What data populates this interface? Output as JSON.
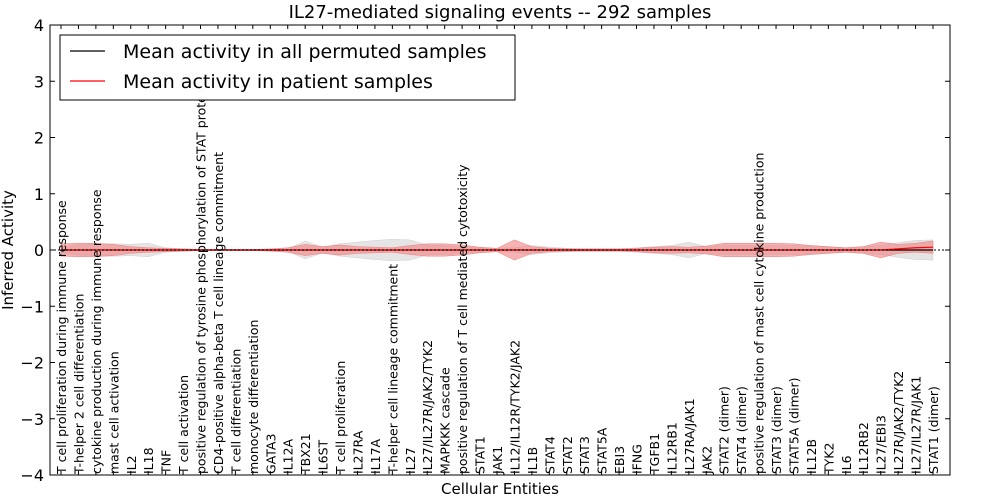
{
  "chart_data": {
    "type": "line",
    "title": "IL27-mediated signaling events -- 292 samples",
    "xlabel": "Cellular Entities",
    "ylabel": "Inferred Activity",
    "ylim": [
      -4,
      4
    ],
    "yticks": [
      "4",
      "3",
      "2",
      "1",
      "0",
      "−1",
      "−2",
      "−3",
      "−4"
    ],
    "ytick_values": [
      4,
      3,
      2,
      1,
      0,
      -1,
      -2,
      -3,
      -4
    ],
    "legend": {
      "placement": "top-left",
      "entries": [
        {
          "label": "Mean activity in all permuted samples",
          "color": "#000000"
        },
        {
          "label": "Mean activity in patient samples",
          "color": "#ff0000"
        }
      ]
    },
    "categories": [
      "T cell proliferation during immune response",
      "T-helper 2 cell differentiation",
      "cytokine production during immune response",
      "mast cell activation",
      "IL2",
      "IL18",
      "TNF",
      "T cell activation",
      "positive regulation of tyrosine phosphorylation of STAT protein",
      "CD4-positive alpha-beta T cell lineage commitment",
      "T cell differentiation",
      "monocyte differentiation",
      "GATA3",
      "IL12A",
      "TBX21",
      "IL6ST",
      "T cell proliferation",
      "IL27RA",
      "IL17A",
      "T-helper cell lineage commitment",
      "IL27",
      "IL27/IL27R/JAK2/TYK2",
      "MAPKKK cascade",
      "positive regulation of T cell mediated cytotoxicity",
      "STAT1",
      "JAK1",
      "IL12/IL12R/TYK2/JAK2",
      "IL1B",
      "STAT4",
      "STAT2",
      "STAT3",
      "STAT5A",
      "EBI3",
      "IFNG",
      "TGFB1",
      "IL12RB1",
      "IL27RA/JAK1",
      "JAK2",
      "STAT2 (dimer)",
      "STAT4 (dimer)",
      "positive regulation of mast cell cytokine production",
      "STAT3 (dimer)",
      "STAT5A (dimer)",
      "IL12B",
      "TYK2",
      "IL6",
      "IL12RB2",
      "IL27/EBI3",
      "IL27R/JAK2/TYK2",
      "IL27/IL27R/JAK1",
      "STAT1 (dimer)"
    ],
    "series": [
      {
        "name": "Mean activity in all permuted samples",
        "color": "#000000",
        "values": [
          0,
          0,
          0,
          0,
          0,
          0,
          0,
          0,
          0,
          0,
          0,
          0,
          0,
          0,
          0,
          0,
          0,
          0,
          0,
          0,
          0,
          0,
          0,
          0,
          0,
          0,
          0,
          0,
          0,
          0,
          0,
          0,
          0,
          0,
          0,
          0,
          0,
          0,
          0,
          0,
          0,
          0,
          0,
          0,
          0,
          0,
          0,
          0,
          0,
          0,
          0
        ],
        "band_upper": [
          0.05,
          0.09,
          0.1,
          0.11,
          0.1,
          0.12,
          0.04,
          0.02,
          0.01,
          0.01,
          0.01,
          0.01,
          0.01,
          0.02,
          0.16,
          0.05,
          0.11,
          0.14,
          0.17,
          0.19,
          0.18,
          0.09,
          0.08,
          0.06,
          0.04,
          0.03,
          0.04,
          0.08,
          0.05,
          0.03,
          0.02,
          0.02,
          0.02,
          0.04,
          0.06,
          0.08,
          0.14,
          0.06,
          0.08,
          0.08,
          0.08,
          0.08,
          0.08,
          0.07,
          0.05,
          0.04,
          0.06,
          0.08,
          0.13,
          0.17,
          0.18
        ],
        "band_lower": [
          -0.05,
          -0.09,
          -0.1,
          -0.11,
          -0.1,
          -0.12,
          -0.04,
          -0.02,
          -0.01,
          -0.01,
          -0.01,
          -0.01,
          -0.01,
          -0.02,
          -0.16,
          -0.05,
          -0.11,
          -0.14,
          -0.17,
          -0.19,
          -0.18,
          -0.09,
          -0.08,
          -0.06,
          -0.04,
          -0.03,
          -0.04,
          -0.08,
          -0.05,
          -0.03,
          -0.02,
          -0.02,
          -0.02,
          -0.04,
          -0.06,
          -0.08,
          -0.14,
          -0.06,
          -0.08,
          -0.08,
          -0.08,
          -0.08,
          -0.08,
          -0.07,
          -0.05,
          -0.04,
          -0.06,
          -0.08,
          -0.13,
          -0.17,
          -0.18
        ]
      },
      {
        "name": "Mean activity in patient samples",
        "color": "#ff0000",
        "values": [
          0,
          0,
          0,
          0,
          0,
          0,
          0,
          0,
          0,
          0,
          0,
          0,
          0,
          0,
          0,
          0,
          0,
          0,
          0,
          0,
          0,
          0,
          0,
          0,
          0,
          0,
          0,
          0,
          0,
          0,
          0,
          0,
          0,
          0,
          0,
          0,
          0,
          0,
          0,
          0,
          0,
          0,
          0,
          0,
          0,
          0,
          0,
          0,
          0.02,
          0.04,
          0.05
        ],
        "band_upper": [
          0.11,
          0.12,
          0.12,
          0.1,
          0.06,
          0.04,
          0.03,
          0.02,
          0.01,
          0.01,
          0.01,
          0.01,
          0.02,
          0.04,
          0.1,
          0.06,
          0.09,
          0.06,
          0.05,
          0.04,
          0.08,
          0.11,
          0.11,
          0.09,
          0.05,
          0.03,
          0.18,
          0.06,
          0.03,
          0.02,
          0.02,
          0.02,
          0.02,
          0.03,
          0.05,
          0.06,
          0.05,
          0.07,
          0.12,
          0.12,
          0.12,
          0.12,
          0.11,
          0.08,
          0.06,
          0.04,
          0.06,
          0.14,
          0.1,
          0.12,
          0.16
        ],
        "band_lower": [
          -0.11,
          -0.12,
          -0.12,
          -0.1,
          -0.06,
          -0.04,
          -0.03,
          -0.02,
          -0.01,
          -0.01,
          -0.01,
          -0.01,
          -0.02,
          -0.04,
          -0.1,
          -0.06,
          -0.09,
          -0.06,
          -0.05,
          -0.04,
          -0.08,
          -0.11,
          -0.11,
          -0.09,
          -0.05,
          -0.03,
          -0.18,
          -0.06,
          -0.03,
          -0.02,
          -0.02,
          -0.02,
          -0.02,
          -0.03,
          -0.05,
          -0.06,
          -0.05,
          -0.07,
          -0.12,
          -0.12,
          -0.12,
          -0.12,
          -0.11,
          -0.08,
          -0.06,
          -0.04,
          -0.06,
          -0.14,
          -0.06,
          -0.04,
          -0.06
        ]
      }
    ]
  }
}
